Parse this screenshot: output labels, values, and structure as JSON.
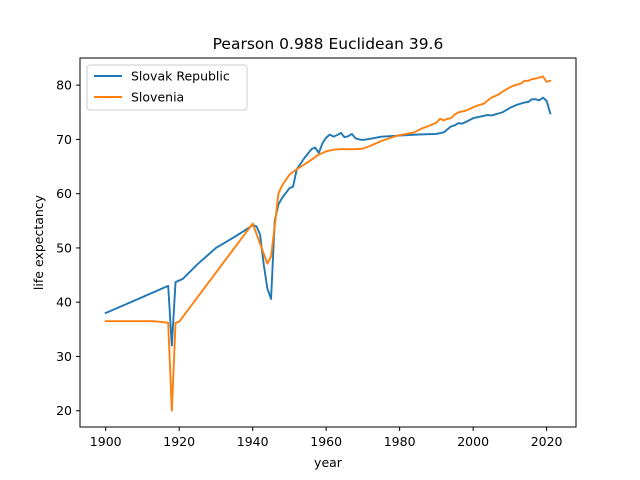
{
  "chart_data": {
    "type": "line",
    "title": "Pearson 0.988 Euclidean 39.6",
    "xlabel": "year",
    "ylabel": "life expectancy",
    "xlim": [
      1893,
      2028
    ],
    "ylim": [
      17,
      85
    ],
    "xticks": [
      1900,
      1920,
      1940,
      1960,
      1980,
      2000,
      2020
    ],
    "yticks": [
      20,
      30,
      40,
      50,
      60,
      70,
      80
    ],
    "grid": false,
    "legend_position": "top-left",
    "series": [
      {
        "name": "Slovak Republic",
        "color": "#1f77b4",
        "x": [
          1900,
          1917,
          1918,
          1919,
          1921,
          1925,
          1930,
          1935,
          1938,
          1940,
          1941,
          1942,
          1943,
          1944,
          1945,
          1946,
          1947,
          1948,
          1950,
          1951,
          1952,
          1954,
          1956,
          1957,
          1958,
          1959,
          1960,
          1961,
          1962,
          1963,
          1964,
          1965,
          1966,
          1967,
          1968,
          1969,
          1970,
          1972,
          1975,
          1980,
          1985,
          1990,
          1992,
          1994,
          1995,
          1996,
          1997,
          1998,
          2000,
          2002,
          2004,
          2005,
          2006,
          2007,
          2008,
          2010,
          2012,
          2014,
          2015,
          2016,
          2017,
          2018,
          2019,
          2020,
          2021
        ],
        "y": [
          38,
          43,
          32,
          43.7,
          44.3,
          47,
          50,
          52,
          53.3,
          54.2,
          54,
          52.5,
          47,
          42.5,
          40.6,
          55,
          58,
          59.2,
          61,
          61.3,
          64.5,
          66.5,
          68.2,
          68.5,
          67.5,
          69.3,
          70.3,
          70.9,
          70.5,
          70.8,
          71.2,
          70.4,
          70.6,
          71,
          70.2,
          70,
          69.9,
          70.1,
          70.5,
          70.7,
          70.9,
          71,
          71.3,
          72.4,
          72.6,
          73,
          72.9,
          73.2,
          73.9,
          74.2,
          74.5,
          74.4,
          74.6,
          74.8,
          75,
          75.8,
          76.4,
          76.8,
          76.9,
          77.4,
          77.4,
          77.2,
          77.7,
          77.1,
          74.8
        ]
      },
      {
        "name": "Slovenia",
        "color": "#ff7f0e",
        "x": [
          1900,
          1913,
          1916,
          1917,
          1918,
          1919,
          1920,
          1940,
          1944,
          1945,
          1946,
          1947,
          1948,
          1950,
          1952,
          1955,
          1958,
          1960,
          1962,
          1964,
          1966,
          1968,
          1970,
          1972,
          1975,
          1978,
          1980,
          1982,
          1984,
          1986,
          1988,
          1990,
          1991,
          1992,
          1993,
          1994,
          1995,
          1996,
          1998,
          2000,
          2001,
          2002,
          2003,
          2004,
          2005,
          2006,
          2007,
          2008,
          2009,
          2010,
          2011,
          2012,
          2013,
          2014,
          2015,
          2016,
          2017,
          2018,
          2019,
          2020,
          2021
        ],
        "y": [
          36.5,
          36.5,
          36.3,
          36.2,
          20,
          36.2,
          36.4,
          54.5,
          47.1,
          48.4,
          54,
          60,
          61.5,
          63.5,
          64.5,
          65.8,
          67.2,
          67.8,
          68.1,
          68.2,
          68.2,
          68.2,
          68.3,
          68.8,
          69.7,
          70.4,
          70.8,
          71,
          71.3,
          72,
          72.5,
          73.1,
          73.8,
          73.5,
          73.8,
          73.9,
          74.6,
          75,
          75.3,
          75.9,
          76.2,
          76.4,
          76.6,
          77.2,
          77.7,
          78,
          78.3,
          78.8,
          79.2,
          79.6,
          79.9,
          80.1,
          80.3,
          80.8,
          80.8,
          81.1,
          81.2,
          81.4,
          81.6,
          80.6,
          80.8
        ]
      }
    ]
  }
}
